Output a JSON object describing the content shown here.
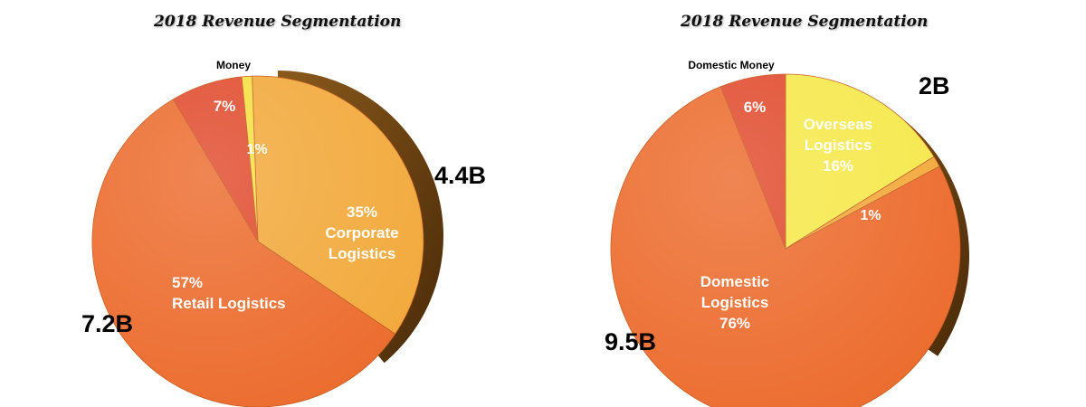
{
  "chart_data": [
    {
      "type": "pie",
      "title": "2018 Revenue Segmentation",
      "slices": [
        {
          "label": "Corporate Logistics",
          "percent": 35,
          "label_lines": [
            "35%",
            "Corporate",
            "Logistics"
          ],
          "color": "#F2A93B"
        },
        {
          "label": "Retail Logistics",
          "percent": 57,
          "label_lines": [
            "57%",
            "Retail Logistics"
          ],
          "color": "#EC6B2D"
        },
        {
          "label": "Money",
          "percent": 7,
          "label_lines": [
            "7%"
          ],
          "color": "#E04A2C"
        },
        {
          "label": "",
          "percent": 1,
          "label_lines": [
            "1%"
          ],
          "color": "#F5E040"
        }
      ],
      "callouts": [
        {
          "text": "Money"
        },
        {
          "text": "4.4B"
        },
        {
          "text": "7.2B"
        }
      ]
    },
    {
      "type": "pie",
      "title": "2018 Revenue Segmentation",
      "slices": [
        {
          "label": "Overseas Logistics",
          "percent": 16,
          "label_lines": [
            "Overseas",
            "Logistics",
            "16%"
          ],
          "color": "#F6E84B"
        },
        {
          "label": "",
          "percent": 1,
          "label_lines": [
            "1%"
          ],
          "color": "#F2A93B"
        },
        {
          "label": "Domestic Logistics",
          "percent": 76,
          "label_lines": [
            "Domestic",
            "Logistics",
            "76%"
          ],
          "color": "#EC6B2D"
        },
        {
          "label": "Domestic Money",
          "percent": 6,
          "label_lines": [
            "6%"
          ],
          "color": "#E04A2C"
        }
      ],
      "callouts": [
        {
          "text": "Domestic Money"
        },
        {
          "text": "2B"
        },
        {
          "text": "9.5B"
        }
      ]
    }
  ]
}
